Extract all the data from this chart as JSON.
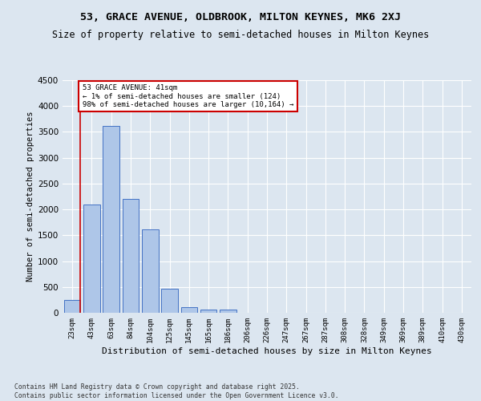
{
  "title": "53, GRACE AVENUE, OLDBROOK, MILTON KEYNES, MK6 2XJ",
  "subtitle": "Size of property relative to semi-detached houses in Milton Keynes",
  "xlabel": "Distribution of semi-detached houses by size in Milton Keynes",
  "ylabel": "Number of semi-detached properties",
  "categories": [
    "23sqm",
    "43sqm",
    "63sqm",
    "84sqm",
    "104sqm",
    "125sqm",
    "145sqm",
    "165sqm",
    "186sqm",
    "206sqm",
    "226sqm",
    "247sqm",
    "267sqm",
    "287sqm",
    "308sqm",
    "328sqm",
    "349sqm",
    "369sqm",
    "389sqm",
    "410sqm",
    "430sqm"
  ],
  "bar_values": [
    250,
    2100,
    3620,
    2200,
    1620,
    460,
    110,
    55,
    55,
    0,
    0,
    0,
    0,
    0,
    0,
    0,
    0,
    0,
    0,
    0,
    0
  ],
  "bar_color": "#aec6e8",
  "bar_edge_color": "#4472c4",
  "annotation_title": "53 GRACE AVENUE: 41sqm",
  "annotation_line1": "← 1% of semi-detached houses are smaller (124)",
  "annotation_line2": "98% of semi-detached houses are larger (10,164) →",
  "annotation_box_color": "#ffffff",
  "annotation_box_edge": "#cc0000",
  "property_line_color": "#cc0000",
  "ylim": [
    0,
    4500
  ],
  "yticks": [
    0,
    500,
    1000,
    1500,
    2000,
    2500,
    3000,
    3500,
    4000,
    4500
  ],
  "bg_color": "#dce6f0",
  "footer_line1": "Contains HM Land Registry data © Crown copyright and database right 2025.",
  "footer_line2": "Contains public sector information licensed under the Open Government Licence v3.0.",
  "title_fontsize": 9.5,
  "subtitle_fontsize": 8.5
}
